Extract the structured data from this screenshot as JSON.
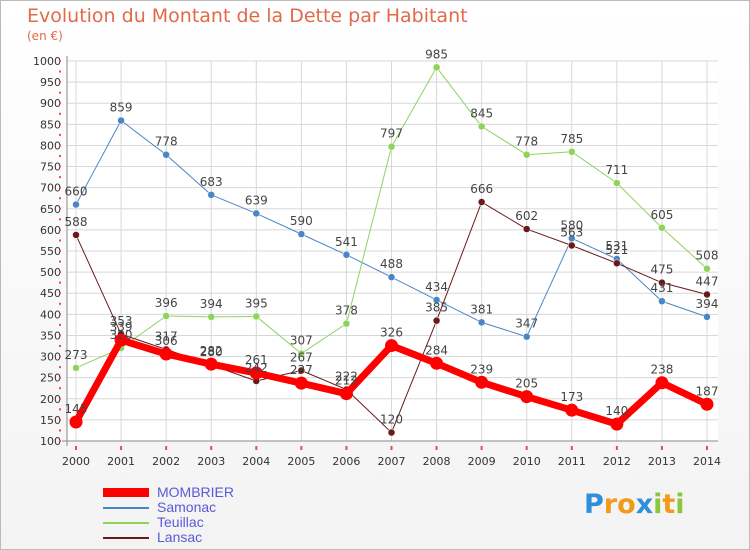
{
  "chart_data": {
    "type": "line",
    "title": "Evolution du Montant de la Dette par Habitant",
    "subtitle": "(en €)",
    "categories": [
      "2000",
      "2001",
      "2002",
      "2003",
      "2004",
      "2005",
      "2006",
      "2007",
      "2008",
      "2009",
      "2010",
      "2011",
      "2012",
      "2013",
      "2014"
    ],
    "ylim": [
      100,
      1000
    ],
    "yticks": [
      100,
      150,
      200,
      250,
      300,
      350,
      400,
      450,
      500,
      550,
      600,
      650,
      700,
      750,
      800,
      850,
      900,
      950,
      1000
    ],
    "grid": true,
    "legend_position": "bottom-left",
    "series": [
      {
        "name": "Samonac",
        "color": "#4a86c4",
        "width": 1,
        "values": [
          660,
          859,
          778,
          683,
          639,
          590,
          541,
          488,
          434,
          381,
          347,
          580,
          531,
          431,
          394
        ]
      },
      {
        "name": "Teuillac",
        "color": "#8fd35a",
        "width": 1,
        "values": [
          273,
          320,
          396,
          394,
          395,
          307,
          378,
          797,
          985,
          845,
          778,
          785,
          711,
          605,
          508
        ]
      },
      {
        "name": "Lansac",
        "color": "#6b1a1a",
        "width": 1,
        "values": [
          588,
          353,
          317,
          280,
          242,
          267,
          222,
          120,
          385,
          666,
          602,
          563,
          521,
          475,
          447
        ]
      },
      {
        "name": "MOMBRIER",
        "color": "#ff0000",
        "width": 7,
        "values": [
          145,
          339,
          306,
          282,
          261,
          237,
          212,
          326,
          284,
          239,
          205,
          173,
          140,
          238,
          187
        ]
      }
    ],
    "legend_order": [
      "MOMBRIER",
      "Samonac",
      "Teuillac",
      "Lansac"
    ]
  },
  "logo": {
    "letters": [
      {
        "ch": "P",
        "color": "#2f8fd8"
      },
      {
        "ch": "r",
        "color": "#f29a1c"
      },
      {
        "ch": "o",
        "color": "#f29a1c"
      },
      {
        "ch": "x",
        "color": "#2f8fd8"
      },
      {
        "ch": "i",
        "color": "#8cc63f"
      },
      {
        "ch": "t",
        "color": "#f29a1c"
      },
      {
        "ch": "i",
        "color": "#8cc63f"
      }
    ]
  }
}
